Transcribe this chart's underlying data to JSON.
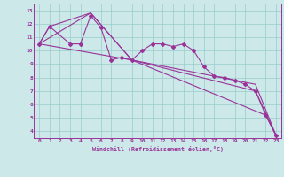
{
  "bg_color": "#cce8e8",
  "grid_color": "#99cccc",
  "line_color": "#993399",
  "spine_color": "#993399",
  "xlabel": "Windchill (Refroidissement éolien,°C)",
  "xlim": [
    -0.5,
    23.5
  ],
  "ylim": [
    3.5,
    13.5
  ],
  "yticks": [
    4,
    5,
    6,
    7,
    8,
    9,
    10,
    11,
    12,
    13
  ],
  "xticks": [
    0,
    1,
    2,
    3,
    4,
    5,
    6,
    7,
    8,
    9,
    10,
    11,
    12,
    13,
    14,
    15,
    16,
    17,
    18,
    19,
    20,
    21,
    22,
    23
  ],
  "series": [
    {
      "x": [
        0,
        1,
        3,
        4,
        5,
        6,
        7,
        8,
        9,
        10,
        11,
        12,
        13,
        14,
        15,
        16,
        17,
        18,
        19,
        20,
        21,
        22,
        23
      ],
      "y": [
        10.5,
        11.8,
        10.5,
        10.5,
        12.6,
        11.7,
        9.3,
        9.5,
        9.3,
        10.0,
        10.5,
        10.5,
        10.3,
        10.5,
        10.0,
        8.8,
        8.1,
        8.0,
        7.8,
        7.5,
        7.0,
        5.2,
        3.7
      ],
      "marker": "D",
      "markersize": 2.0
    },
    {
      "x": [
        0,
        5,
        9,
        22,
        23
      ],
      "y": [
        10.5,
        12.8,
        9.3,
        5.2,
        3.7
      ],
      "marker": null
    },
    {
      "x": [
        0,
        1,
        5,
        9,
        21,
        23
      ],
      "y": [
        10.5,
        11.8,
        12.8,
        9.3,
        7.0,
        3.7
      ],
      "marker": null
    },
    {
      "x": [
        0,
        9,
        21,
        23
      ],
      "y": [
        10.5,
        9.3,
        7.5,
        3.7
      ],
      "marker": null
    }
  ]
}
